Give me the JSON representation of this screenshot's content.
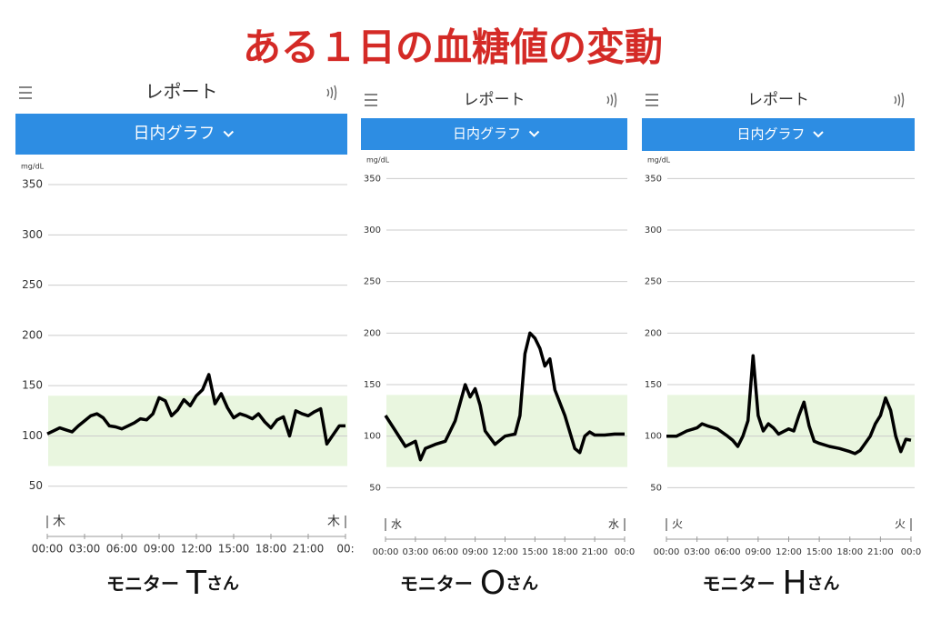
{
  "title": "ある１日の血糖値の変動",
  "chart_data": [
    {
      "type": "line",
      "header": "レポート",
      "tab": "日内グラフ",
      "y_unit": "mg/dL",
      "caption": {
        "prefix": "モニター",
        "name": "T",
        "suffix": "さん"
      },
      "day_labels": [
        "木",
        "木"
      ],
      "color": "#000000",
      "target_range": [
        70,
        140
      ],
      "target_color": "#e9f6df",
      "xlim": [
        0,
        24
      ],
      "ylim": [
        0,
        360
      ],
      "grid": true,
      "yticks": [
        50,
        100,
        150,
        200,
        250,
        300,
        350
      ],
      "xticks": [
        {
          "value": 0,
          "label": "00:00"
        },
        {
          "value": 3,
          "label": "03:00"
        },
        {
          "value": 6,
          "label": "06:00"
        },
        {
          "value": 9,
          "label": "09:00"
        },
        {
          "value": 12,
          "label": "12:00"
        },
        {
          "value": 15,
          "label": "15:00"
        },
        {
          "value": 18,
          "label": "18:00"
        },
        {
          "value": 21,
          "label": "21:00"
        },
        {
          "value": 24,
          "label": "00:"
        }
      ],
      "x": [
        0,
        0.5,
        1,
        1.5,
        2,
        2.5,
        3,
        3.5,
        4,
        4.5,
        5,
        5.5,
        6,
        6.5,
        7,
        7.5,
        8,
        8.5,
        9,
        9.5,
        10,
        10.5,
        11,
        11.5,
        12,
        12.5,
        13,
        13.5,
        14,
        14.5,
        15,
        15.5,
        16,
        16.5,
        17,
        17.5,
        18,
        18.5,
        19,
        19.5,
        20,
        20.5,
        21,
        21.5,
        22,
        22.5,
        23,
        23.5,
        24
      ],
      "values": [
        102,
        105,
        108,
        106,
        104,
        110,
        115,
        120,
        122,
        118,
        110,
        109,
        107,
        110,
        113,
        117,
        116,
        122,
        138,
        135,
        120,
        126,
        136,
        130,
        140,
        146,
        161,
        132,
        142,
        128,
        118,
        122,
        120,
        117,
        122,
        114,
        108,
        116,
        119,
        100,
        125,
        122,
        120,
        124,
        127,
        92,
        101,
        110,
        110
      ]
    },
    {
      "type": "line",
      "header": "レポート",
      "tab": "日内グラフ",
      "y_unit": "mg/dL",
      "caption": {
        "prefix": "モニター",
        "name": "O",
        "suffix": "さん"
      },
      "day_labels": [
        "水",
        "水"
      ],
      "color": "#000000",
      "target_range": [
        70,
        140
      ],
      "target_color": "#e9f6df",
      "xlim": [
        0,
        24
      ],
      "ylim": [
        0,
        360
      ],
      "grid": true,
      "yticks": [
        50,
        100,
        150,
        200,
        250,
        300,
        350
      ],
      "xticks": [
        {
          "value": 0,
          "label": "00:00"
        },
        {
          "value": 3,
          "label": "03:00"
        },
        {
          "value": 6,
          "label": "06:00"
        },
        {
          "value": 9,
          "label": "09:00"
        },
        {
          "value": 12,
          "label": "12:00"
        },
        {
          "value": 15,
          "label": "15:00"
        },
        {
          "value": 18,
          "label": "18:00"
        },
        {
          "value": 21,
          "label": "21:00"
        },
        {
          "value": 24,
          "label": "00:0"
        }
      ],
      "x": [
        0,
        1,
        2,
        3,
        3.5,
        4,
        5,
        6,
        7,
        8,
        8.5,
        9,
        9.5,
        10,
        11,
        12,
        13,
        13.5,
        14,
        14.5,
        15,
        15.5,
        16,
        16.5,
        17,
        18,
        19,
        19.5,
        20,
        20.5,
        21,
        22,
        23,
        24
      ],
      "values": [
        120,
        105,
        90,
        95,
        77,
        88,
        92,
        95,
        115,
        150,
        138,
        146,
        130,
        105,
        92,
        100,
        102,
        120,
        180,
        200,
        195,
        185,
        168,
        175,
        145,
        120,
        88,
        84,
        100,
        104,
        101,
        101,
        102,
        102
      ]
    },
    {
      "type": "line",
      "header": "レポート",
      "tab": "日内グラフ",
      "y_unit": "mg/dL",
      "caption": {
        "prefix": "モニター",
        "name": "H",
        "suffix": "さん"
      },
      "day_labels": [
        "火",
        "火"
      ],
      "color": "#000000",
      "target_range": [
        70,
        140
      ],
      "target_color": "#e9f6df",
      "xlim": [
        0,
        24
      ],
      "ylim": [
        0,
        360
      ],
      "grid": true,
      "yticks": [
        50,
        100,
        150,
        200,
        250,
        300,
        350
      ],
      "xticks": [
        {
          "value": 0,
          "label": "00:00"
        },
        {
          "value": 3,
          "label": "03:00"
        },
        {
          "value": 6,
          "label": "06:00"
        },
        {
          "value": 9,
          "label": "09:00"
        },
        {
          "value": 12,
          "label": "12:00"
        },
        {
          "value": 15,
          "label": "15:00"
        },
        {
          "value": 18,
          "label": "18:00"
        },
        {
          "value": 21,
          "label": "21:00"
        },
        {
          "value": 24,
          "label": "00:0"
        }
      ],
      "x": [
        0,
        1,
        2,
        3,
        3.5,
        4,
        5,
        6,
        6.5,
        7,
        7.5,
        8,
        8.5,
        9,
        9.5,
        10,
        10.5,
        11,
        12,
        12.5,
        13,
        13.5,
        14,
        14.5,
        15,
        16,
        17,
        18,
        18.5,
        19,
        20,
        20.5,
        21,
        21.5,
        22,
        22.5,
        23,
        23.5,
        24
      ],
      "values": [
        100,
        100,
        105,
        108,
        112,
        110,
        107,
        100,
        96,
        90,
        100,
        115,
        178,
        120,
        105,
        112,
        108,
        102,
        107,
        105,
        120,
        133,
        110,
        95,
        93,
        90,
        88,
        85,
        83,
        86,
        100,
        112,
        120,
        137,
        125,
        100,
        85,
        97,
        96
      ]
    }
  ]
}
